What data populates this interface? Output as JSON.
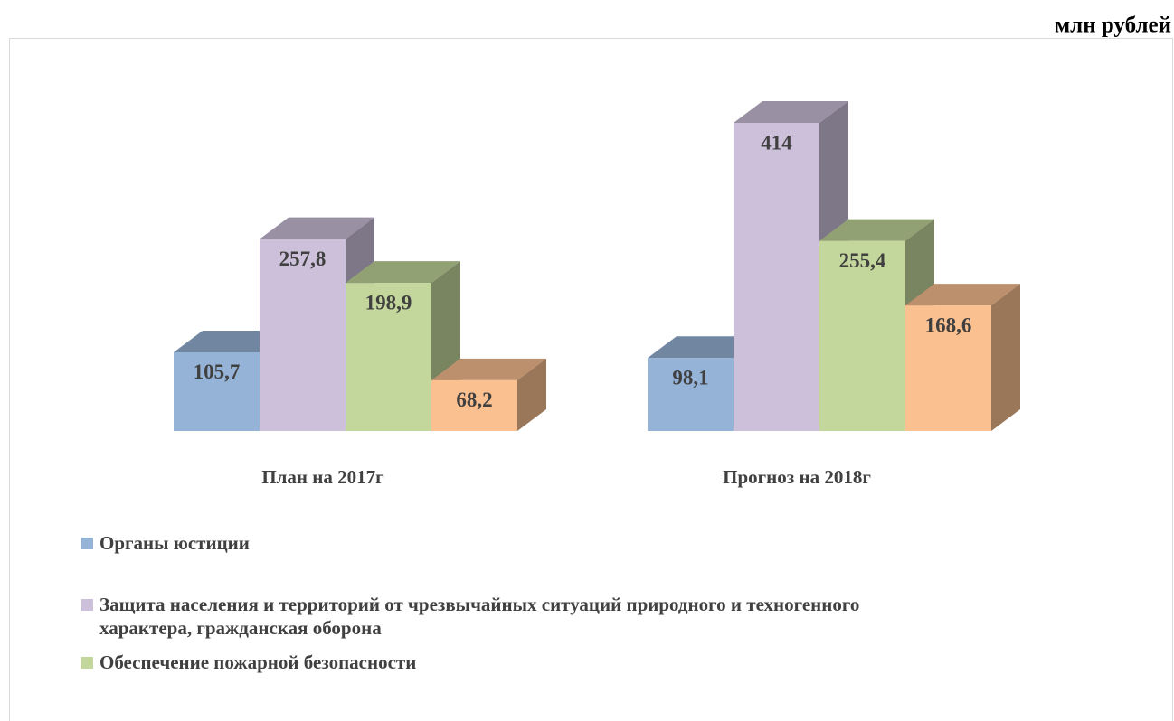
{
  "chart_data": {
    "type": "bar3d",
    "unit_label": "млн рублей",
    "categories": [
      "План на 2017г",
      "Прогноз на 2018г"
    ],
    "series": [
      {
        "name": "Органы юстиции",
        "color": "#95b3d7",
        "values": [
          105.7,
          98.1
        ],
        "value_labels": [
          "105,7",
          "98,1"
        ]
      },
      {
        "name": "Защита населения и территорий от чрезвычайных ситуаций природного и техногенного характера, гражданская оборона",
        "color": "#ccc0da",
        "values": [
          257.8,
          414
        ],
        "value_labels": [
          "257,8",
          "414"
        ]
      },
      {
        "name": "Обеспечение пожарной безопасности",
        "color": "#c3d69b",
        "values": [
          198.9,
          255.4
        ],
        "value_labels": [
          "198,9",
          "255,4"
        ]
      },
      {
        "color": "#fac090",
        "values": [
          68.2,
          168.6
        ],
        "value_labels": [
          "68,2",
          "168,6"
        ]
      }
    ]
  }
}
